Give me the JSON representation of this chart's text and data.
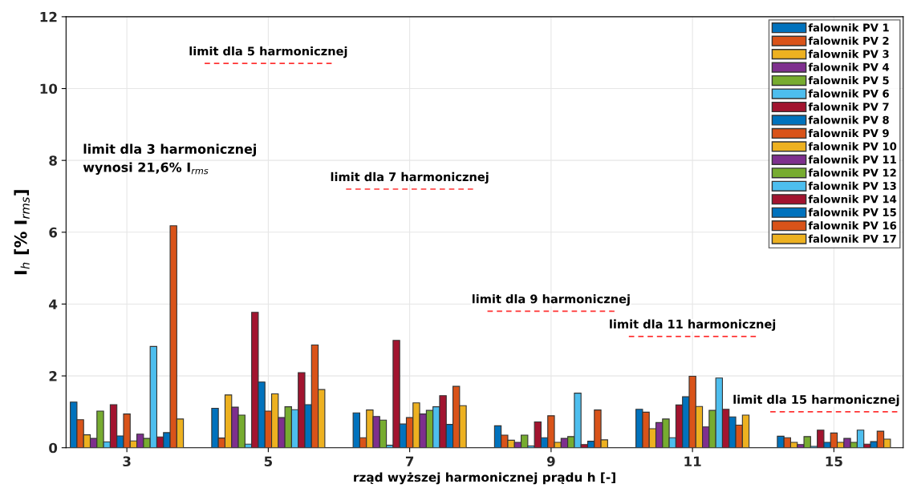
{
  "chart_data": {
    "type": "bar",
    "categories": [
      "3",
      "5",
      "7",
      "9",
      "11",
      "15"
    ],
    "xlabel": "rząd wyższej harmonicznej prądu h [-]",
    "ylabel": "I$_{h}$ [% I$_{rms}$]",
    "ylim": [
      0,
      12
    ],
    "yticks": [
      0,
      2,
      4,
      6,
      8,
      10,
      12
    ],
    "grid": true,
    "legend": "top right",
    "series": [
      {
        "name": "falownik PV 1",
        "color": "#0072bd",
        "values": [
          1.27,
          1.1,
          0.97,
          0.61,
          1.07,
          0.32
        ]
      },
      {
        "name": "falownik PV 2",
        "color": "#d95319",
        "values": [
          0.78,
          0.27,
          0.28,
          0.35,
          0.99,
          0.28
        ]
      },
      {
        "name": "falownik PV 3",
        "color": "#edb120",
        "values": [
          0.36,
          1.47,
          1.05,
          0.21,
          0.53,
          0.15
        ]
      },
      {
        "name": "falownik PV 4",
        "color": "#7e2f8e",
        "values": [
          0.26,
          1.13,
          0.87,
          0.15,
          0.7,
          0.09
        ]
      },
      {
        "name": "falownik PV 5",
        "color": "#77ac30",
        "values": [
          1.02,
          0.91,
          0.77,
          0.35,
          0.8,
          0.31
        ]
      },
      {
        "name": "falownik PV 6",
        "color": "#4dbeee",
        "values": [
          0.16,
          0.1,
          0.07,
          0.05,
          0.28,
          0.04
        ]
      },
      {
        "name": "falownik PV 7",
        "color": "#a2142f",
        "values": [
          1.2,
          3.77,
          2.99,
          0.72,
          1.19,
          0.49
        ]
      },
      {
        "name": "falownik PV 8",
        "color": "#0072bd",
        "values": [
          0.33,
          1.83,
          0.66,
          0.28,
          1.42,
          0.15
        ]
      },
      {
        "name": "falownik PV 9",
        "color": "#d95319",
        "values": [
          0.94,
          1.02,
          0.84,
          0.89,
          1.99,
          0.41
        ]
      },
      {
        "name": "falownik PV 10",
        "color": "#edb120",
        "values": [
          0.19,
          1.5,
          1.25,
          0.15,
          1.15,
          0.15
        ]
      },
      {
        "name": "falownik PV 11",
        "color": "#7e2f8e",
        "values": [
          0.38,
          0.84,
          0.94,
          0.26,
          0.58,
          0.26
        ]
      },
      {
        "name": "falownik PV 12",
        "color": "#77ac30",
        "values": [
          0.26,
          1.14,
          1.04,
          0.31,
          1.04,
          0.15
        ]
      },
      {
        "name": "falownik PV 13",
        "color": "#4dbeee",
        "values": [
          2.82,
          1.06,
          1.14,
          1.52,
          1.94,
          0.49
        ]
      },
      {
        "name": "falownik PV 14",
        "color": "#a2142f",
        "values": [
          0.3,
          2.09,
          1.45,
          0.09,
          1.07,
          0.1
        ]
      },
      {
        "name": "falownik PV 15",
        "color": "#0072bd",
        "values": [
          0.42,
          1.2,
          0.65,
          0.18,
          0.86,
          0.17
        ]
      },
      {
        "name": "falownik PV 16",
        "color": "#d95319",
        "values": [
          6.18,
          2.86,
          1.71,
          1.05,
          0.63,
          0.46
        ]
      },
      {
        "name": "falownik PV 17",
        "color": "#edb120",
        "values": [
          0.8,
          1.62,
          1.17,
          0.22,
          0.91,
          0.24
        ]
      }
    ],
    "annotations": [
      "limit dla 3 harmonicznej\nwynosi 21,6% I$_{rms}$"
    ],
    "ref_lines": [
      {
        "axis": "y",
        "value": 10.7,
        "label": "limit dla 5 harmonicznej",
        "color": "#ff3333",
        "line_style": "dashed"
      },
      {
        "axis": "y",
        "value": 7.2,
        "label": "limit dla 7 harmonicznej",
        "color": "#ff3333",
        "line_style": "dashed"
      },
      {
        "axis": "y",
        "value": 3.8,
        "label": "limit dla 9 harmonicznej",
        "color": "#ff3333",
        "line_style": "dashed"
      },
      {
        "axis": "y",
        "value": 3.1,
        "label": "limit dla 11 harmonicznej",
        "color": "#ff3333",
        "line_style": "dashed"
      },
      {
        "axis": "y",
        "value": 1.0,
        "label": "limit dla 15 harmonicznej",
        "color": "#ff3333",
        "line_style": "dashed"
      }
    ]
  }
}
